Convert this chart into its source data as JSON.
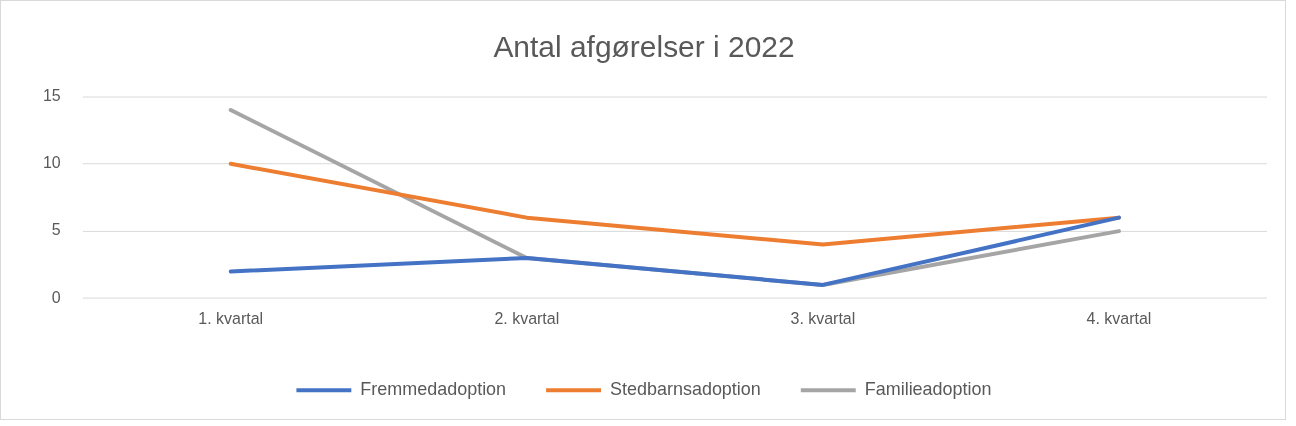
{
  "chart_data": {
    "type": "line",
    "title": "Antal afgørelser i 2022",
    "categories": [
      "1. kvartal",
      "2. kvartal",
      "3. kvartal",
      "4. kvartal"
    ],
    "series": [
      {
        "name": "Fremmedadoption",
        "color": "#4472c4",
        "values": [
          2,
          3,
          1,
          6
        ]
      },
      {
        "name": "Stedbarnsadoption",
        "color": "#ed7d31",
        "values": [
          10,
          6,
          4,
          6
        ]
      },
      {
        "name": "Familieadoption",
        "color": "#a5a5a5",
        "values": [
          14,
          3,
          1,
          5
        ]
      }
    ],
    "ylim": [
      0,
      15
    ],
    "yticks": [
      0,
      5,
      10,
      15
    ],
    "grid": "y",
    "legend": "bottom",
    "marker": "none",
    "line_style": "solid"
  }
}
